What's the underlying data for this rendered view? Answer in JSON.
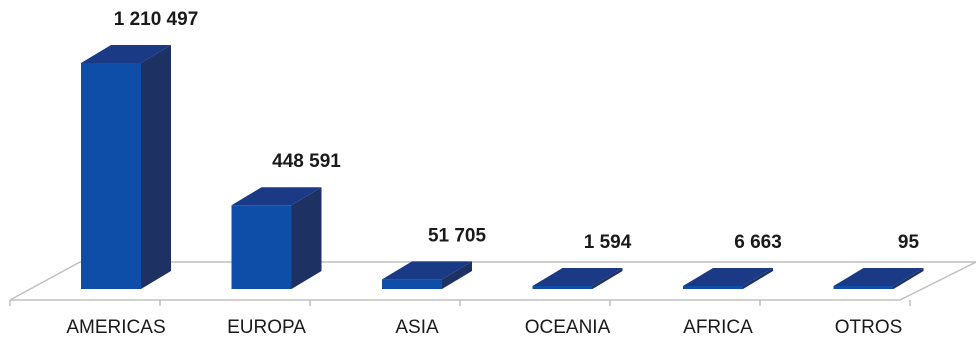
{
  "chart_data": {
    "type": "bar",
    "style": "3d-column",
    "title": "",
    "xlabel": "",
    "ylabel": "",
    "grid": false,
    "legend": "none",
    "categories": [
      "AMERICAS",
      "EUROPA",
      "ASIA",
      "OCEANIA",
      "AFRICA",
      "OTROS"
    ],
    "values": [
      1210497,
      448591,
      51705,
      1594,
      6663,
      95
    ],
    "value_labels": [
      "1 210 497",
      "448 591",
      "51 705",
      "1 594",
      "6 663",
      "95"
    ],
    "ylim": [
      0,
      1210497
    ],
    "colors": {
      "front": "#0e4ea8",
      "side": "#1e3163",
      "top": "#1a3a85",
      "floor": "#bfbfbf"
    }
  }
}
